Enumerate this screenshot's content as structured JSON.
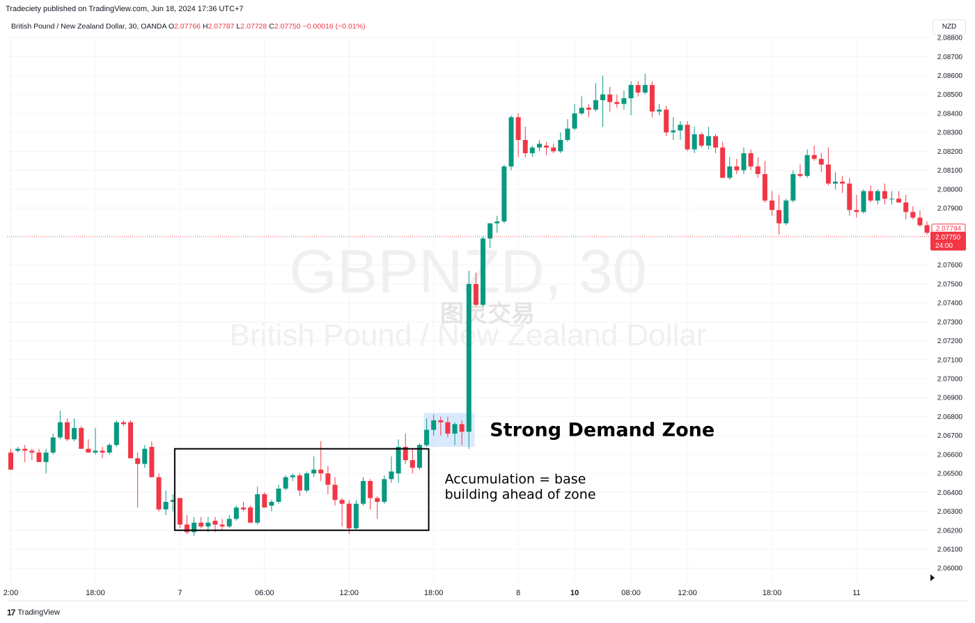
{
  "publisher_line": "Tradeciety published on TradingView.com, Jun 18, 2024 17:36 UTC+7",
  "symbol": {
    "name": "British Pound / New Zealand Dollar, 30, OANDA",
    "o_label": "O",
    "o": "2.07766",
    "h_label": "H",
    "h": "2.07787",
    "l_label": "L",
    "l": "2.07728",
    "c_label": "C",
    "c": "2.07750",
    "change": "−0.00016 (−0.01%)"
  },
  "currency_button": "NZD",
  "footer": {
    "logo": "17",
    "brand": "TradingView"
  },
  "watermark": {
    "ticker": "GBPNZD, 30",
    "chinese": "图灵交易",
    "name": "British Pound / New Zealand Dollar"
  },
  "colors": {
    "up": "#089981",
    "down": "#f23645",
    "zone": "#bbd9fb",
    "grid": "#f0f3fa"
  },
  "chart_data": {
    "type": "candlestick",
    "ylim": [
      2.0595,
      2.0888
    ],
    "ytick_labels": [
      "2.08800",
      "2.08700",
      "2.08600",
      "2.08500",
      "2.08400",
      "2.08300",
      "2.08200",
      "2.08100",
      "2.08000",
      "2.07900",
      "2.07600",
      "2.07500",
      "2.07400",
      "2.07300",
      "2.07200",
      "2.07100",
      "2.07000",
      "2.06900",
      "2.06800",
      "2.06700",
      "2.06600",
      "2.06500",
      "2.06400",
      "2.06300",
      "2.06200",
      "2.06100",
      "2.06000"
    ],
    "ytick_values": [
      2.088,
      2.087,
      2.086,
      2.085,
      2.084,
      2.083,
      2.082,
      2.081,
      2.08,
      2.079,
      2.076,
      2.075,
      2.074,
      2.073,
      2.072,
      2.071,
      2.07,
      2.069,
      2.068,
      2.067,
      2.066,
      2.065,
      2.064,
      2.063,
      2.062,
      2.061,
      2.06
    ],
    "xtick_labels": [
      {
        "text": "2:00",
        "index": 0,
        "bold": false
      },
      {
        "text": "18:00",
        "index": 12,
        "bold": false
      },
      {
        "text": "7",
        "index": 24,
        "bold": false
      },
      {
        "text": "06:00",
        "index": 36,
        "bold": false
      },
      {
        "text": "12:00",
        "index": 48,
        "bold": false
      },
      {
        "text": "18:00",
        "index": 60,
        "bold": false
      },
      {
        "text": "8",
        "index": 72,
        "bold": false
      },
      {
        "text": "10",
        "index": 80,
        "bold": true
      },
      {
        "text": "08:00",
        "index": 88,
        "bold": false
      },
      {
        "text": "12:00",
        "index": 96,
        "bold": false
      },
      {
        "text": "18:00",
        "index": 108,
        "bold": false
      },
      {
        "text": "11",
        "index": 120,
        "bold": false
      }
    ],
    "candles": [
      [
        2.0661,
        2.0663,
        2.0652,
        2.0652
      ],
      [
        2.0662,
        2.0664,
        2.0661,
        2.0663
      ],
      [
        2.0663,
        2.0665,
        2.0656,
        2.0662
      ],
      [
        2.0662,
        2.0663,
        2.0657,
        2.0661
      ],
      [
        2.0661,
        2.0663,
        2.0656,
        2.0656
      ],
      [
        2.0656,
        2.0663,
        2.065,
        2.0661
      ],
      [
        2.0661,
        2.0671,
        2.066,
        2.0669
      ],
      [
        2.0669,
        2.0683,
        2.0668,
        2.0677
      ],
      [
        2.0677,
        2.0679,
        2.0667,
        2.0668
      ],
      [
        2.0668,
        2.0679,
        2.0667,
        2.0674
      ],
      [
        2.0674,
        2.0675,
        2.0663,
        2.0663
      ],
      [
        2.0663,
        2.0668,
        2.0661,
        2.0661
      ],
      [
        2.0661,
        2.0674,
        2.066,
        2.0662
      ],
      [
        2.0662,
        2.0664,
        2.0658,
        2.0661
      ],
      [
        2.0661,
        2.0666,
        2.066,
        2.0665
      ],
      [
        2.0665,
        2.0678,
        2.0664,
        2.0677
      ],
      [
        2.0677,
        2.0678,
        2.0675,
        2.0676
      ],
      [
        2.0677,
        2.0678,
        2.0658,
        2.0658
      ],
      [
        2.0658,
        2.0661,
        2.0632,
        2.0655
      ],
      [
        2.0655,
        2.0665,
        2.0653,
        2.0663
      ],
      [
        2.0664,
        2.0667,
        2.0648,
        2.0648
      ],
      [
        2.0648,
        2.065,
        2.063,
        2.0631
      ],
      [
        2.0631,
        2.0641,
        2.0628,
        2.0635
      ],
      [
        2.0635,
        2.0639,
        2.063,
        2.0636
      ],
      [
        2.0637,
        2.0637,
        2.0621,
        2.0623
      ],
      [
        2.0623,
        2.0628,
        2.0618,
        2.0619
      ],
      [
        2.0619,
        2.0627,
        2.0617,
        2.0624
      ],
      [
        2.0624,
        2.0627,
        2.0621,
        2.0622
      ],
      [
        2.0622,
        2.0627,
        2.0619,
        2.0624
      ],
      [
        2.0625,
        2.0627,
        2.0619,
        2.0623
      ],
      [
        2.0623,
        2.0626,
        2.062,
        2.0622
      ],
      [
        2.0622,
        2.0628,
        2.0621,
        2.0626
      ],
      [
        2.0626,
        2.0633,
        2.0625,
        2.0632
      ],
      [
        2.0632,
        2.0635,
        2.063,
        2.0631
      ],
      [
        2.0632,
        2.0633,
        2.0624,
        2.0624
      ],
      [
        2.0624,
        2.0643,
        2.0623,
        2.0639
      ],
      [
        2.0639,
        2.064,
        2.0632,
        2.0632
      ],
      [
        2.0633,
        2.0636,
        2.063,
        2.0635
      ],
      [
        2.0635,
        2.0644,
        2.0634,
        2.0642
      ],
      [
        2.0642,
        2.0649,
        2.0641,
        2.0648
      ],
      [
        2.0648,
        2.065,
        2.0646,
        2.0649
      ],
      [
        2.0649,
        2.065,
        2.0638,
        2.0641
      ],
      [
        2.0641,
        2.0651,
        2.064,
        2.065
      ],
      [
        2.065,
        2.0659,
        2.0648,
        2.0652
      ],
      [
        2.0652,
        2.0667,
        2.0646,
        2.065
      ],
      [
        2.065,
        2.0654,
        2.0639,
        2.0644
      ],
      [
        2.0644,
        2.0648,
        2.0633,
        2.0636
      ],
      [
        2.0636,
        2.0637,
        2.0622,
        2.0634
      ],
      [
        2.0634,
        2.0636,
        2.0618,
        2.0621
      ],
      [
        2.0621,
        2.0636,
        2.062,
        2.0634
      ],
      [
        2.0634,
        2.0648,
        2.0633,
        2.0646
      ],
      [
        2.0646,
        2.0647,
        2.0631,
        2.0637
      ],
      [
        2.0637,
        2.0638,
        2.0626,
        2.0635
      ],
      [
        2.0635,
        2.0649,
        2.0634,
        2.0647
      ],
      [
        2.0647,
        2.0659,
        2.0645,
        2.0651
      ],
      [
        2.065,
        2.0668,
        2.0645,
        2.0664
      ],
      [
        2.0664,
        2.0671,
        2.0655,
        2.0657
      ],
      [
        2.0657,
        2.0663,
        2.065,
        2.0653
      ],
      [
        2.0653,
        2.0666,
        2.0652,
        2.0665
      ],
      [
        2.0665,
        2.0679,
        2.0664,
        2.0673
      ],
      [
        2.0673,
        2.0681,
        2.067,
        2.0678
      ],
      [
        2.0678,
        2.068,
        2.067,
        2.0677
      ],
      [
        2.0677,
        2.068,
        2.0669,
        2.0671
      ],
      [
        2.0671,
        2.0677,
        2.0665,
        2.0676
      ],
      [
        2.0676,
        2.0678,
        2.0665,
        2.0672
      ],
      [
        2.0672,
        2.0757,
        2.0663,
        2.075
      ],
      [
        2.075,
        2.0756,
        2.0738,
        2.0739
      ],
      [
        2.0739,
        2.0775,
        2.0738,
        2.0774
      ],
      [
        2.0774,
        2.0782,
        2.0769,
        2.0782
      ],
      [
        2.0782,
        2.0786,
        2.0777,
        2.0783
      ],
      [
        2.0783,
        2.0813,
        2.0782,
        2.0812
      ],
      [
        2.0812,
        2.0839,
        2.081,
        2.0838
      ],
      [
        2.0838,
        2.084,
        2.0817,
        2.0826
      ],
      [
        2.0826,
        2.0833,
        2.0817,
        2.0819
      ],
      [
        2.0819,
        2.0823,
        2.0817,
        2.0822
      ],
      [
        2.0822,
        2.0826,
        2.082,
        2.0824
      ],
      [
        2.0823,
        2.0825,
        2.0818,
        2.0822
      ],
      [
        2.0822,
        2.0824,
        2.0819,
        2.082
      ],
      [
        2.082,
        2.083,
        2.0819,
        2.0826
      ],
      [
        2.0826,
        2.0837,
        2.0825,
        2.0832
      ],
      [
        2.0832,
        2.0845,
        2.0831,
        2.084
      ],
      [
        2.084,
        2.0849,
        2.0839,
        2.0843
      ],
      [
        2.0843,
        2.0845,
        2.0838,
        2.0842
      ],
      [
        2.0842,
        2.0856,
        2.0841,
        2.0847
      ],
      [
        2.0847,
        2.086,
        2.0833,
        2.085
      ],
      [
        2.085,
        2.0854,
        2.0841,
        2.0846
      ],
      [
        2.0846,
        2.085,
        2.0843,
        2.0845
      ],
      [
        2.0845,
        2.0852,
        2.0842,
        2.0848
      ],
      [
        2.0848,
        2.0857,
        2.0839,
        2.0855
      ],
      [
        2.0855,
        2.0857,
        2.0849,
        2.0851
      ],
      [
        2.0851,
        2.0861,
        2.085,
        2.0855
      ],
      [
        2.0855,
        2.0857,
        2.0838,
        2.0841
      ],
      [
        2.0841,
        2.0845,
        2.0839,
        2.0842
      ],
      [
        2.0842,
        2.0844,
        2.0828,
        2.083
      ],
      [
        2.083,
        2.0838,
        2.0826,
        2.0831
      ],
      [
        2.0831,
        2.0836,
        2.0826,
        2.0834
      ],
      [
        2.0834,
        2.0836,
        2.082,
        2.0821
      ],
      [
        2.0821,
        2.0833,
        2.0819,
        2.0829
      ],
      [
        2.0829,
        2.083,
        2.0822,
        2.0823
      ],
      [
        2.0823,
        2.0833,
        2.0821,
        2.0828
      ],
      [
        2.0828,
        2.0829,
        2.0819,
        2.0822
      ],
      [
        2.0822,
        2.0825,
        2.0806,
        2.0806
      ],
      [
        2.0806,
        2.0817,
        2.0805,
        2.0812
      ],
      [
        2.0812,
        2.0816,
        2.0808,
        2.081
      ],
      [
        2.081,
        2.0822,
        2.0808,
        2.0819
      ],
      [
        2.0819,
        2.0821,
        2.081,
        2.0812
      ],
      [
        2.0812,
        2.0817,
        2.0806,
        2.0808
      ],
      [
        2.0808,
        2.0815,
        2.0793,
        2.0794
      ],
      [
        2.0794,
        2.0799,
        2.0786,
        2.0789
      ],
      [
        2.0789,
        2.0797,
        2.0776,
        2.0782
      ],
      [
        2.0782,
        2.0795,
        2.0781,
        2.0794
      ],
      [
        2.0794,
        2.081,
        2.0793,
        2.0808
      ],
      [
        2.0808,
        2.0813,
        2.0806,
        2.0807
      ],
      [
        2.0807,
        2.0821,
        2.0806,
        2.0818
      ],
      [
        2.0818,
        2.0823,
        2.0815,
        2.0816
      ],
      [
        2.0816,
        2.0819,
        2.0809,
        2.0813
      ],
      [
        2.0813,
        2.0822,
        2.0802,
        2.0803
      ],
      [
        2.0803,
        2.0809,
        2.08,
        2.0804
      ],
      [
        2.0804,
        2.0807,
        2.0798,
        2.0803
      ],
      [
        2.0803,
        2.0806,
        2.0786,
        2.0789
      ],
      [
        2.0789,
        2.0797,
        2.0785,
        2.0788
      ],
      [
        2.0788,
        2.08,
        2.0787,
        2.0799
      ],
      [
        2.0799,
        2.0802,
        2.0793,
        2.0794
      ],
      [
        2.0794,
        2.08,
        2.0792,
        2.0799
      ],
      [
        2.0799,
        2.0803,
        2.0792,
        2.0795
      ],
      [
        2.0795,
        2.0799,
        2.0792,
        2.0795
      ],
      [
        2.0795,
        2.0799,
        2.0793,
        2.0793
      ],
      [
        2.0793,
        2.0797,
        2.0784,
        2.0788
      ],
      [
        2.0788,
        2.0791,
        2.0784,
        2.0785
      ],
      [
        2.0785,
        2.0789,
        2.078,
        2.0781
      ],
      [
        2.0781,
        2.0783,
        2.0776,
        2.0777
      ]
    ],
    "last_price_label": "2.07750",
    "countdown_label": "24:00",
    "marker_price_label": "2.07794",
    "last_price_value": 2.0775,
    "marker_price_value": 2.07794,
    "demand_zone": {
      "start_index": 59,
      "end_index": 65,
      "low": 2.0664,
      "high": 2.0682
    },
    "accumulation_box": {
      "start_index": 24,
      "end_index": 59,
      "low": 2.062,
      "high": 2.0663
    },
    "annotations": {
      "demand_zone_label": "Strong Demand Zone",
      "accumulation_line1": "Accumulation = base",
      "accumulation_line2": "building ahead of zone"
    }
  }
}
